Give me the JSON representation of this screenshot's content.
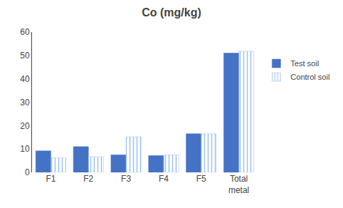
{
  "chart_data": {
    "type": "bar",
    "title": "Co (mg/kg)",
    "categories": [
      "F1",
      "F2",
      "F3",
      "F4",
      "F5",
      "Total\nmetal"
    ],
    "series": [
      {
        "name": "Test soil",
        "color": "#4472C4",
        "values": [
          9.2,
          11.0,
          7.5,
          7.2,
          16.5,
          51.0
        ]
      },
      {
        "name": "Control soil",
        "color": "#BDD7EE",
        "values": [
          6.2,
          6.7,
          15.2,
          7.5,
          16.5,
          51.8
        ]
      }
    ],
    "ylim": [
      0,
      60
    ],
    "yticks": [
      0,
      10,
      20,
      30,
      40,
      50,
      60
    ],
    "grid": false,
    "legend": "right"
  }
}
